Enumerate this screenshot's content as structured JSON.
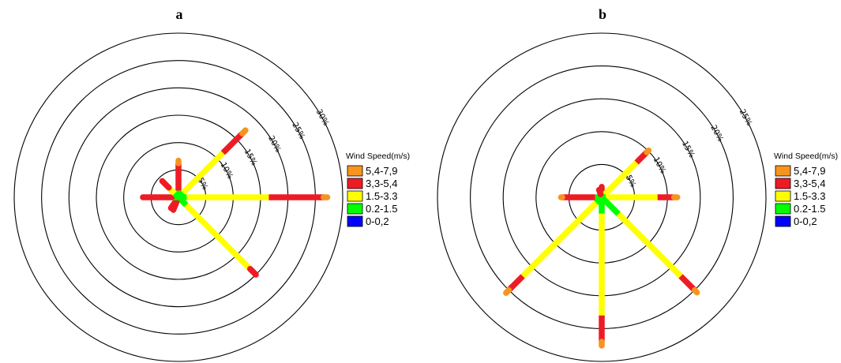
{
  "chart_data": [
    {
      "type": "wind-rose",
      "title": "a",
      "legend_title": "Wind Speed(m/s)",
      "legend_placement": "right",
      "bins": [
        {
          "label": "5,4-7,9",
          "color": "#f7941d"
        },
        {
          "label": "3,3-5,4",
          "color": "#ed1c24"
        },
        {
          "label": "1.5-3.3",
          "color": "#ffff00"
        },
        {
          "label": "0.2-1.5",
          "color": "#00ff00"
        },
        {
          "label": "0-0,2",
          "color": "#0000ff"
        }
      ],
      "rings": [
        "5%",
        "10%",
        "15%",
        "20%",
        "25%",
        "30%"
      ],
      "ring_label_direction_deg": 61,
      "max_percent": 30,
      "directions": [
        {
          "dir_deg": 0,
          "cum": [
            0,
            1.2,
            1.2,
            6.2,
            6.7
          ]
        },
        {
          "dir_deg": 45,
          "cum": [
            0,
            1.2,
            11.5,
            16.5,
            17.3
          ]
        },
        {
          "dir_deg": 90,
          "cum": [
            0,
            1.5,
            16.5,
            26.5,
            27.2
          ]
        },
        {
          "dir_deg": 135,
          "cum": [
            0,
            2.0,
            18.5,
            20.0,
            20.0
          ]
        },
        {
          "dir_deg": 202,
          "cum": [
            0,
            0.8,
            0.8,
            2.5,
            2.5
          ]
        },
        {
          "dir_deg": 215,
          "cum": [
            0,
            0.8,
            0.8,
            2.4,
            2.4
          ]
        },
        {
          "dir_deg": 270,
          "cum": [
            0,
            1.2,
            1.2,
            6.5,
            6.5
          ]
        },
        {
          "dir_deg": 315,
          "cum": [
            0,
            1.0,
            2.5,
            4.2,
            4.2
          ]
        }
      ]
    },
    {
      "type": "wind-rose",
      "title": "b",
      "legend_title": "Wind Speed(m/s)",
      "legend_placement": "right",
      "bins": [
        {
          "label": "5,4-7,9",
          "color": "#f7941d"
        },
        {
          "label": "3,3-5,4",
          "color": "#ed1c24"
        },
        {
          "label": "1.5-3.3",
          "color": "#ffff00"
        },
        {
          "label": "0.2-1.5",
          "color": "#00ff00"
        },
        {
          "label": "0-0,2",
          "color": "#0000ff"
        }
      ],
      "rings": [
        "5%",
        "10%",
        "15%",
        "20%",
        "25%"
      ],
      "ring_label_direction_deg": 61,
      "max_percent": 25,
      "directions": [
        {
          "dir_deg": 0,
          "cum": [
            0,
            0.3,
            0.3,
            1.6,
            1.6
          ]
        },
        {
          "dir_deg": 45,
          "cum": [
            0,
            0.6,
            7.5,
            9.7,
            10.1
          ]
        },
        {
          "dir_deg": 90,
          "cum": [
            0,
            0.6,
            8.5,
            11.0,
            11.5
          ]
        },
        {
          "dir_deg": 135,
          "cum": [
            0,
            3.6,
            17.0,
            20.0,
            20.5
          ]
        },
        {
          "dir_deg": 180,
          "cum": [
            0,
            2.5,
            18.0,
            22.0,
            22.6
          ]
        },
        {
          "dir_deg": 225,
          "cum": [
            0,
            1.2,
            17.0,
            20.0,
            20.6
          ]
        },
        {
          "dir_deg": 270,
          "cum": [
            0,
            1.0,
            1.0,
            6.0,
            6.2
          ]
        },
        {
          "dir_deg": 340,
          "cum": [
            0,
            0.5,
            0.5,
            1.2,
            1.2
          ]
        }
      ]
    }
  ]
}
